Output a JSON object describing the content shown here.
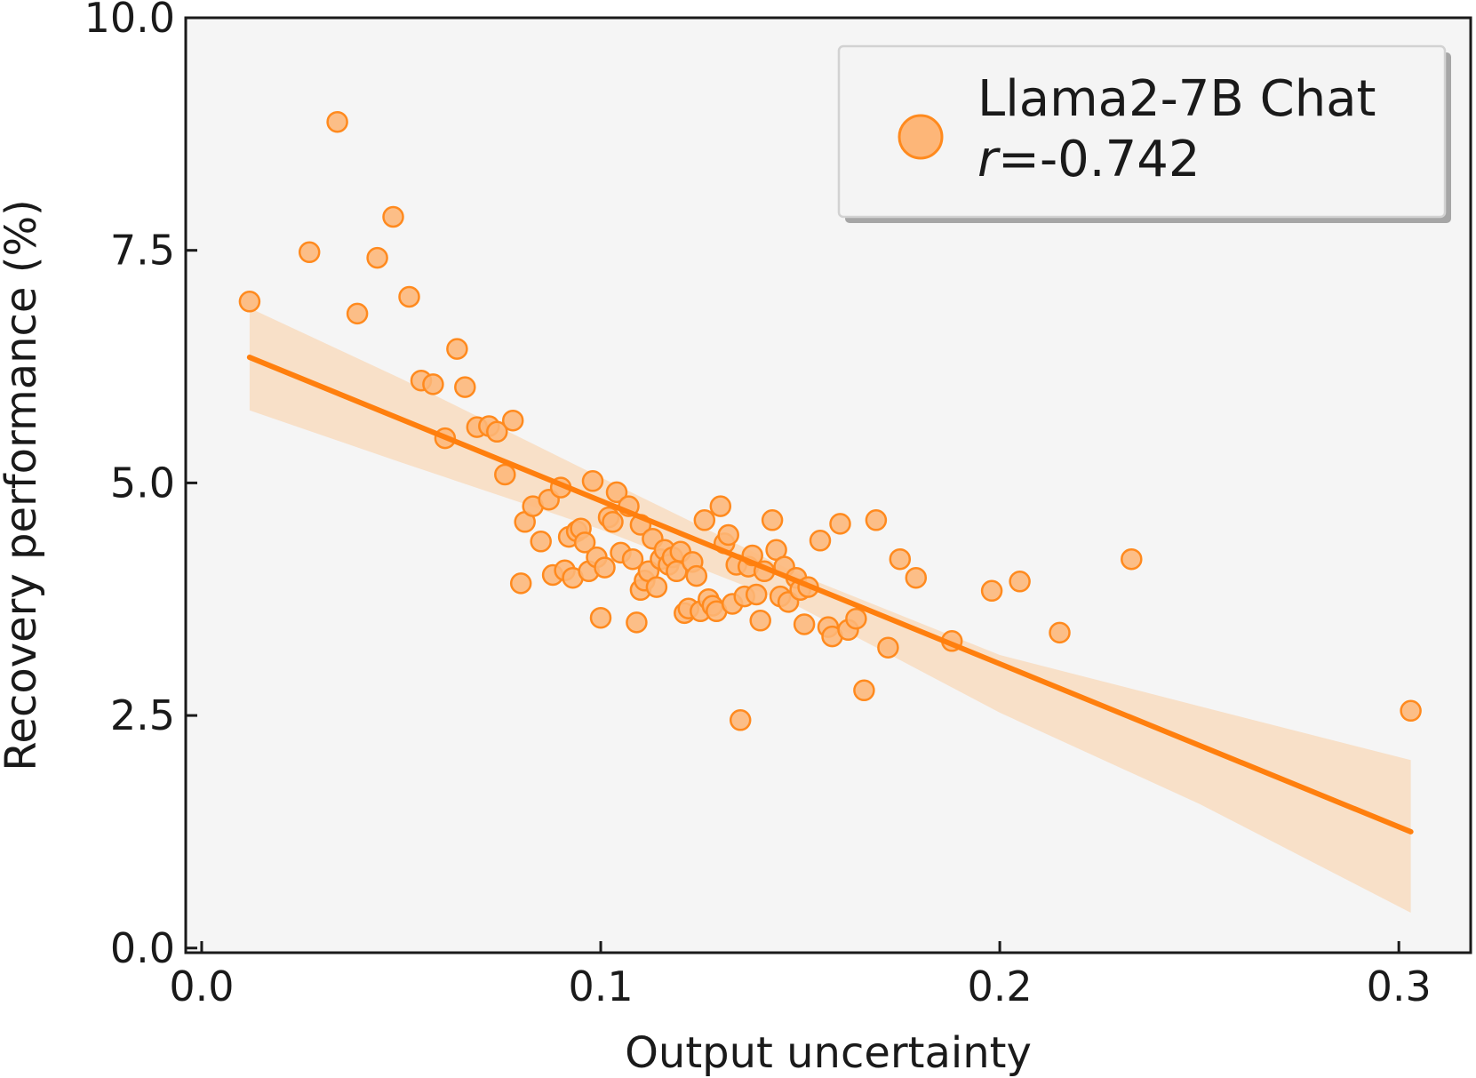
{
  "chart_data": {
    "type": "scatter",
    "xlabel": "Output uncertainty",
    "ylabel": "Recovery performance (%)",
    "xlim": [
      -0.004,
      0.318
    ],
    "ylim": [
      -0.05,
      10.0
    ],
    "x_ticks": [
      0.0,
      0.1,
      0.2,
      0.3
    ],
    "x_tick_labels": [
      "0.0",
      "0.1",
      "0.2",
      "0.3"
    ],
    "y_ticks": [
      0.0,
      2.5,
      5.0,
      7.5,
      10.0
    ],
    "y_tick_labels": [
      "0.0",
      "2.5",
      "5.0",
      "7.5",
      "10.0"
    ],
    "grid": false,
    "background": "#f5f5f5",
    "colors": {
      "points": "#fdb678",
      "point_edge": "#ff8a1e",
      "line": "#ff7f0e",
      "band": "#f8dcc0"
    },
    "legend": {
      "position": "top-right",
      "name_prefix": "Llama2-7B Chat",
      "stat_symbol": "r",
      "stat_value": "=-0.742"
    },
    "regression": {
      "x": [
        0.012,
        0.303
      ],
      "y": [
        6.35,
        1.25
      ],
      "ci_upper": [
        [
          0.012,
          6.88
        ],
        [
          0.05,
          6.12
        ],
        [
          0.1,
          5.06
        ],
        [
          0.15,
          4.01
        ],
        [
          0.2,
          3.15
        ],
        [
          0.25,
          2.6
        ],
        [
          0.303,
          2.02
        ]
      ],
      "ci_lower": [
        [
          0.012,
          5.78
        ],
        [
          0.05,
          5.22
        ],
        [
          0.1,
          4.5
        ],
        [
          0.15,
          3.66
        ],
        [
          0.2,
          2.53
        ],
        [
          0.25,
          1.55
        ],
        [
          0.303,
          0.38
        ]
      ]
    },
    "series": [
      {
        "points": [
          [
            0.012,
            6.95
          ],
          [
            0.027,
            7.48
          ],
          [
            0.034,
            8.88
          ],
          [
            0.039,
            6.82
          ],
          [
            0.044,
            7.42
          ],
          [
            0.048,
            7.86
          ],
          [
            0.052,
            7.0
          ],
          [
            0.055,
            6.1
          ],
          [
            0.058,
            6.06
          ],
          [
            0.061,
            5.48
          ],
          [
            0.064,
            6.44
          ],
          [
            0.066,
            6.03
          ],
          [
            0.069,
            5.6
          ],
          [
            0.072,
            5.61
          ],
          [
            0.074,
            5.55
          ],
          [
            0.076,
            5.09
          ],
          [
            0.078,
            5.67
          ],
          [
            0.08,
            3.92
          ],
          [
            0.081,
            4.58
          ],
          [
            0.083,
            4.75
          ],
          [
            0.085,
            4.37
          ],
          [
            0.087,
            4.82
          ],
          [
            0.088,
            4.01
          ],
          [
            0.09,
            4.95
          ],
          [
            0.091,
            4.06
          ],
          [
            0.092,
            4.42
          ],
          [
            0.093,
            3.98
          ],
          [
            0.094,
            4.48
          ],
          [
            0.095,
            4.51
          ],
          [
            0.096,
            4.36
          ],
          [
            0.097,
            4.05
          ],
          [
            0.098,
            5.02
          ],
          [
            0.099,
            4.2
          ],
          [
            0.1,
            3.55
          ],
          [
            0.101,
            4.09
          ],
          [
            0.102,
            4.63
          ],
          [
            0.103,
            4.58
          ],
          [
            0.104,
            4.9
          ],
          [
            0.105,
            4.25
          ],
          [
            0.107,
            4.75
          ],
          [
            0.108,
            4.18
          ],
          [
            0.109,
            3.5
          ],
          [
            0.11,
            3.85
          ],
          [
            0.11,
            4.55
          ],
          [
            0.111,
            3.95
          ],
          [
            0.112,
            4.05
          ],
          [
            0.113,
            4.4
          ],
          [
            0.114,
            3.88
          ],
          [
            0.115,
            4.18
          ],
          [
            0.116,
            4.28
          ],
          [
            0.117,
            4.12
          ],
          [
            0.118,
            4.2
          ],
          [
            0.119,
            4.05
          ],
          [
            0.12,
            4.26
          ],
          [
            0.121,
            3.6
          ],
          [
            0.122,
            3.65
          ],
          [
            0.123,
            4.15
          ],
          [
            0.124,
            4.0
          ],
          [
            0.125,
            3.62
          ],
          [
            0.126,
            4.6
          ],
          [
            0.127,
            3.75
          ],
          [
            0.128,
            3.68
          ],
          [
            0.129,
            3.62
          ],
          [
            0.13,
            4.75
          ],
          [
            0.131,
            4.35
          ],
          [
            0.132,
            4.44
          ],
          [
            0.133,
            3.7
          ],
          [
            0.134,
            4.12
          ],
          [
            0.135,
            2.45
          ],
          [
            0.136,
            3.78
          ],
          [
            0.137,
            4.1
          ],
          [
            0.138,
            4.22
          ],
          [
            0.139,
            3.8
          ],
          [
            0.14,
            3.52
          ],
          [
            0.141,
            4.05
          ],
          [
            0.143,
            4.6
          ],
          [
            0.144,
            4.28
          ],
          [
            0.145,
            3.78
          ],
          [
            0.146,
            4.1
          ],
          [
            0.147,
            3.72
          ],
          [
            0.149,
            3.98
          ],
          [
            0.15,
            3.85
          ],
          [
            0.151,
            3.48
          ],
          [
            0.152,
            3.88
          ],
          [
            0.155,
            4.38
          ],
          [
            0.157,
            3.45
          ],
          [
            0.158,
            3.35
          ],
          [
            0.16,
            4.56
          ],
          [
            0.162,
            3.42
          ],
          [
            0.164,
            3.54
          ],
          [
            0.166,
            2.77
          ],
          [
            0.169,
            4.6
          ],
          [
            0.172,
            3.23
          ],
          [
            0.175,
            4.18
          ],
          [
            0.179,
            3.98
          ],
          [
            0.188,
            3.3
          ],
          [
            0.198,
            3.84
          ],
          [
            0.205,
            3.94
          ],
          [
            0.215,
            3.39
          ],
          [
            0.233,
            4.18
          ],
          [
            0.303,
            2.55
          ]
        ]
      }
    ]
  }
}
